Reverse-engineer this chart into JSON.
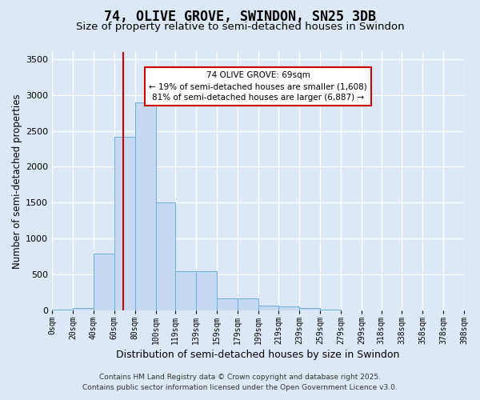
{
  "title": "74, OLIVE GROVE, SWINDON, SN25 3DB",
  "subtitle": "Size of property relative to semi-detached houses in Swindon",
  "xlabel": "Distribution of semi-detached houses by size in Swindon",
  "ylabel": "Number of semi-detached properties",
  "bar_color": "#c5d9f0",
  "bar_edge_color": "#6baed6",
  "fig_bg_color": "#dce8f5",
  "plot_bg_color": "#dce8f5",
  "grid_color": "#ffffff",
  "property_size": 69,
  "property_line_color": "#cc0000",
  "annotation_line1": "74 OLIVE GROVE: 69sqm",
  "annotation_line2": "← 19% of semi-detached houses are smaller (1,608)",
  "annotation_line3": "81% of semi-detached houses are larger (6,887) →",
  "annotation_box_color": "#ffffff",
  "annotation_box_edge_color": "#cc0000",
  "bins": [
    0,
    20,
    40,
    60,
    80,
    100,
    119,
    139,
    159,
    179,
    199,
    219,
    239,
    259,
    279,
    299,
    318,
    338,
    358,
    378,
    398
  ],
  "bar_values": [
    15,
    35,
    790,
    2420,
    2900,
    1500,
    545,
    545,
    170,
    165,
    70,
    50,
    28,
    8,
    4,
    4,
    4,
    4,
    2,
    2
  ],
  "ylim": [
    0,
    3600
  ],
  "yticks": [
    0,
    500,
    1000,
    1500,
    2000,
    2500,
    3000,
    3500
  ],
  "footer_line1": "Contains HM Land Registry data © Crown copyright and database right 2025.",
  "footer_line2": "Contains public sector information licensed under the Open Government Licence v3.0.",
  "title_fontsize": 12,
  "subtitle_fontsize": 9.5,
  "axis_label_fontsize": 8.5,
  "tick_fontsize": 7,
  "footer_fontsize": 6.5
}
